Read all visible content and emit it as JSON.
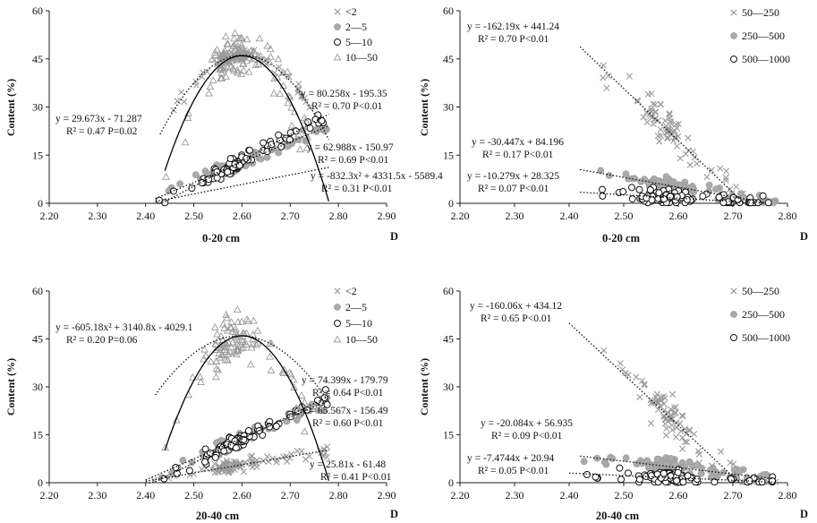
{
  "chart_data": [
    {
      "type": "scatter",
      "id": "p1",
      "title": "",
      "xlabel": "0-20 cm",
      "ylabel": "Content (%)",
      "xlim": [
        2.2,
        2.9
      ],
      "ylim": [
        0,
        60
      ],
      "xticks": [
        "2.20",
        "2.30",
        "2.40",
        "2.50",
        "2.60",
        "2.70",
        "2.80",
        "2.90"
      ],
      "yticks": [
        "0",
        "15",
        "30",
        "45",
        "60"
      ],
      "legend": [
        "<2",
        "2—5",
        "5—10",
        "10—50"
      ],
      "series": [
        {
          "name": "<2",
          "marker": "x",
          "xmin": 2.44,
          "xmax": 2.76,
          "fit": {
            "kind": "quad",
            "a": -832.3,
            "b": 4331.5,
            "c": -5589.4,
            "x0": 2.43,
            "x1": 2.78
          },
          "equation": [
            "y = -832.3x² + 4331.5x - 5589.4",
            "R² = 0.31  P<0.01"
          ]
        },
        {
          "name": "2—5",
          "marker": "circle-gray",
          "xmin": 2.42,
          "xmax": 2.78,
          "fit": {
            "kind": "lin",
            "a": 62.988,
            "b": -150.97,
            "x0": 2.42,
            "x1": 2.78
          },
          "equation": [
            "y = 62.988x - 150.97",
            "R² = 0.69  P<0.01"
          ]
        },
        {
          "name": "5—10",
          "marker": "circle-open",
          "xmin": 2.42,
          "xmax": 2.78,
          "fit": {
            "kind": "lin",
            "a": 80.258,
            "b": -195.35,
            "x0": 2.42,
            "x1": 2.78
          },
          "equation": [
            "y = 80.258x - 195.35",
            "R² = 0.70  P<0.01"
          ]
        },
        {
          "name": "10—50",
          "marker": "triangle",
          "xmin": 2.42,
          "xmax": 2.74,
          "fit": {
            "kind": "lin",
            "a": 29.673,
            "b": -71.287,
            "x0": 2.42,
            "x1": 2.78
          },
          "curve": {
            "a": -1400,
            "b": 7280,
            "c": -9418,
            "x0": 2.44,
            "x1": 2.78
          },
          "equation": [
            "y = 29.673x - 71.287",
            "R² = 0.47  P=0.02"
          ]
        }
      ]
    },
    {
      "type": "scatter",
      "id": "p2",
      "title": "",
      "xlabel": "0-20 cm",
      "ylabel": "Content (%)",
      "xlim": [
        2.2,
        2.8
      ],
      "ylim": [
        0,
        60
      ],
      "xticks": [
        "2.20",
        "2.30",
        "2.40",
        "2.50",
        "2.60",
        "2.70",
        "2.80"
      ],
      "yticks": [
        "0",
        "15",
        "30",
        "45",
        "60"
      ],
      "legend": [
        "50—250",
        "250—500",
        "500—1000"
      ],
      "series": [
        {
          "name": "50—250",
          "marker": "x",
          "xmin": 2.42,
          "xmax": 2.78,
          "fit": {
            "kind": "lin",
            "a": -162.19,
            "b": 441.24,
            "x0": 2.42,
            "x1": 2.72
          },
          "equation": [
            "y = -162.19x + 441.24",
            "R² = 0.70  P<0.01"
          ]
        },
        {
          "name": "250—500",
          "marker": "circle-gray",
          "xmin": 2.42,
          "xmax": 2.78,
          "fit": {
            "kind": "lin",
            "a": -30.447,
            "b": 84.196,
            "x0": 2.42,
            "x1": 2.76
          },
          "equation": [
            "y = -30.447x + 84.196",
            "R² = 0.17  P<0.01"
          ]
        },
        {
          "name": "500—1000",
          "marker": "circle-open",
          "xmin": 2.42,
          "xmax": 2.78,
          "fit": {
            "kind": "lin",
            "a": -10.279,
            "b": 28.325,
            "x0": 2.42,
            "x1": 2.76
          },
          "equation": [
            "y = -10.279x + 28.325",
            "R² = 0.07  P<0.01"
          ]
        }
      ]
    },
    {
      "type": "scatter",
      "id": "p3",
      "title": "",
      "xlabel": "20-40 cm",
      "ylabel": "Content (%)",
      "xlim": [
        2.2,
        2.9
      ],
      "ylim": [
        0,
        60
      ],
      "xticks": [
        "2.20",
        "2.30",
        "2.40",
        "2.50",
        "2.60",
        "2.70",
        "2.80",
        "2.90"
      ],
      "yticks": [
        "0",
        "15",
        "30",
        "45",
        "60"
      ],
      "legend": [
        "<2",
        "2—5",
        "5—10",
        "10—50"
      ],
      "series": [
        {
          "name": "<2",
          "marker": "x",
          "xmin": 2.4,
          "xmax": 2.78,
          "fit": {
            "kind": "lin",
            "a": 25.81,
            "b": -61.48,
            "x0": 2.4,
            "x1": 2.78
          },
          "equation": [
            "y = 25.81x - 61.48",
            "R² = 0.41  P<0.01"
          ]
        },
        {
          "name": "2—5",
          "marker": "circle-gray",
          "xmin": 2.4,
          "xmax": 2.78,
          "fit": {
            "kind": "lin",
            "a": 65.567,
            "b": -156.49,
            "x0": 2.4,
            "x1": 2.78
          },
          "equation": [
            "y = 65.567x - 156.49",
            "R² = 0.60  P<0.01"
          ]
        },
        {
          "name": "5—10",
          "marker": "circle-open",
          "xmin": 2.4,
          "xmax": 2.78,
          "fit": {
            "kind": "lin",
            "a": 74.399,
            "b": -179.79,
            "x0": 2.4,
            "x1": 2.78
          },
          "equation": [
            "y = 74.399x - 179.79",
            "R² = 0.64  P<0.01"
          ]
        },
        {
          "name": "10—50",
          "marker": "triangle",
          "xmin": 2.42,
          "xmax": 2.74,
          "fit": {
            "kind": "quad",
            "a": -605.18,
            "b": 3140.8,
            "c": -4029.1,
            "x0": 2.42,
            "x1": 2.78
          },
          "curve": {
            "a": -1400,
            "b": 7280,
            "c": -9418,
            "x0": 2.44,
            "x1": 2.78
          },
          "equation": [
            "y = -605.18x² + 3140.8x - 4029.1",
            "R² = 0.20  P=0.06"
          ]
        }
      ]
    },
    {
      "type": "scatter",
      "id": "p4",
      "title": "",
      "xlabel": "20-40 cm",
      "ylabel": "Content (%)",
      "xlim": [
        2.2,
        2.8
      ],
      "ylim": [
        0,
        60
      ],
      "xticks": [
        "2.20",
        "2.30",
        "2.40",
        "2.50",
        "2.60",
        "2.70",
        "2.80"
      ],
      "yticks": [
        "0",
        "15",
        "30",
        "45",
        "60"
      ],
      "legend": [
        "50—250",
        "250—500",
        "500—1000"
      ],
      "series": [
        {
          "name": "50—250",
          "marker": "x",
          "xmin": 2.4,
          "xmax": 2.78,
          "fit": {
            "kind": "lin",
            "a": -160.06,
            "b": 434.12,
            "x0": 2.4,
            "x1": 2.72
          },
          "equation": [
            "y = -160.06x + 434.12",
            "R² = 0.65  P<0.01"
          ]
        },
        {
          "name": "250—500",
          "marker": "circle-gray",
          "xmin": 2.42,
          "xmax": 2.78,
          "fit": {
            "kind": "lin",
            "a": -20.084,
            "b": 56.935,
            "x0": 2.42,
            "x1": 2.78
          },
          "equation": [
            "y = -20.084x + 56.935",
            "R² = 0.09  P<0.01"
          ]
        },
        {
          "name": "500—1000",
          "marker": "circle-open",
          "xmin": 2.4,
          "xmax": 2.78,
          "fit": {
            "kind": "lin",
            "a": -7.4744,
            "b": 20.94,
            "x0": 2.4,
            "x1": 2.78
          },
          "equation": [
            "y = -7.4744x + 20.94",
            "R² = 0.05  P<0.01"
          ]
        }
      ]
    }
  ],
  "axis_letter": "D",
  "colors": {
    "gray_fill": "#aaaaaa",
    "marker_stroke": "#9a9a9a",
    "dark": "#111111",
    "curve": "#000000"
  }
}
